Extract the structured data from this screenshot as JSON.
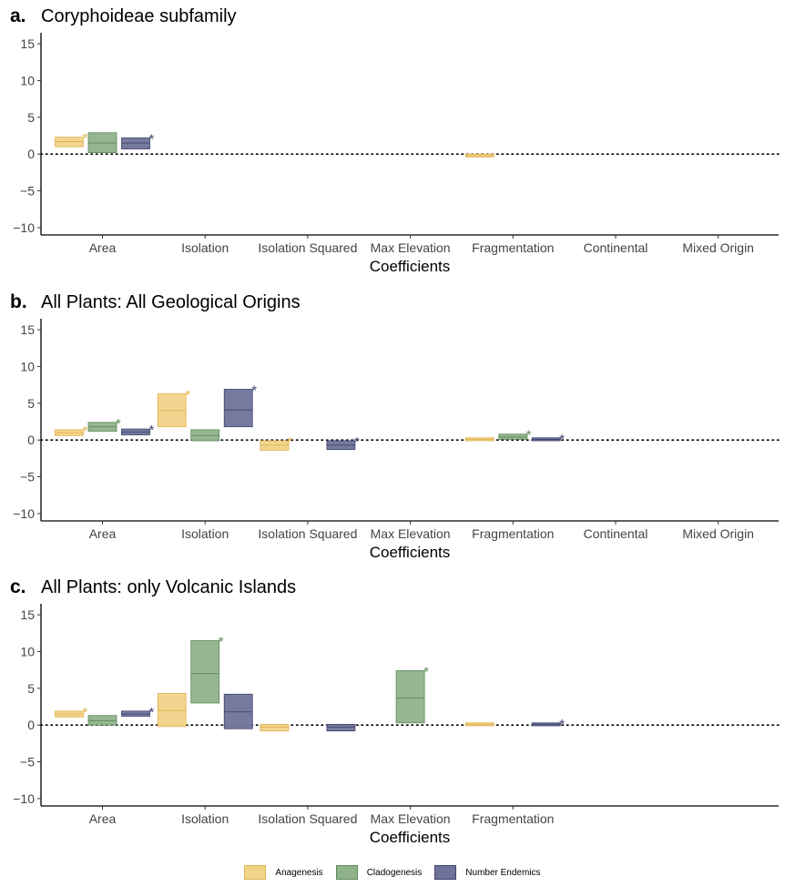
{
  "colors": {
    "anagenesis": "#f2d38a",
    "anagenesis_line": "#e0b44e",
    "cladogenesis": "#8fb28a",
    "cladogenesis_line": "#5b8a58",
    "endemics": "#6f7399",
    "endemics_line": "#3e4470"
  },
  "legend": {
    "anagenesis": "Anagenesis",
    "cladogenesis": "Cladogenesis",
    "endemics": "Number Endemics"
  },
  "chart_data": [
    {
      "type": "box",
      "panel_label": "a.",
      "title": "Coryphoideae subfamily",
      "xlabel": "Coefficients",
      "ylabel": "",
      "ylim": [
        -11,
        16
      ],
      "yticks": [
        -10,
        -5,
        0,
        5,
        10,
        15
      ],
      "categories": [
        "Area",
        "Isolation",
        "Isolation Squared",
        "Max Elevation",
        "Fragmentation",
        "Continental",
        "Mixed Origin"
      ],
      "series": [
        {
          "name": "Anagenesis",
          "key": "anagenesis",
          "offset": -1,
          "boxes": [
            {
              "cat": 0,
              "low": 1.0,
              "mid": 1.7,
              "high": 2.3,
              "star": true
            },
            {
              "cat": 4,
              "low": -0.4,
              "mid": -0.2,
              "high": 0.0,
              "star": false
            }
          ]
        },
        {
          "name": "Cladogenesis",
          "key": "cladogenesis",
          "offset": 0,
          "boxes": [
            {
              "cat": 0,
              "low": 0.2,
              "mid": 1.5,
              "high": 2.9,
              "star": false
            }
          ]
        },
        {
          "name": "Number Endemics",
          "key": "endemics",
          "offset": 1,
          "boxes": [
            {
              "cat": 0,
              "low": 0.7,
              "mid": 1.5,
              "high": 2.2,
              "star": true
            }
          ]
        }
      ]
    },
    {
      "type": "box",
      "panel_label": "b.",
      "title": "All Plants: All Geological Origins",
      "xlabel": "Coefficients",
      "ylabel": "",
      "ylim": [
        -11,
        16
      ],
      "yticks": [
        -10,
        -5,
        0,
        5,
        10,
        15
      ],
      "categories": [
        "Area",
        "Isolation",
        "Isolation Squared",
        "Max Elevation",
        "Fragmentation",
        "Continental",
        "Mixed Origin"
      ],
      "series": [
        {
          "name": "Anagenesis",
          "key": "anagenesis",
          "offset": -1,
          "boxes": [
            {
              "cat": 0,
              "low": 0.6,
              "mid": 1.0,
              "high": 1.4,
              "star": true
            },
            {
              "cat": 1,
              "low": 1.8,
              "mid": 4.0,
              "high": 6.3,
              "star": true
            },
            {
              "cat": 2,
              "low": -1.4,
              "mid": -0.7,
              "high": -0.1,
              "star": true
            },
            {
              "cat": 4,
              "low": -0.1,
              "mid": 0.1,
              "high": 0.3,
              "star": false
            }
          ]
        },
        {
          "name": "Cladogenesis",
          "key": "cladogenesis",
          "offset": 0,
          "boxes": [
            {
              "cat": 0,
              "low": 1.2,
              "mid": 1.8,
              "high": 2.4,
              "star": true
            },
            {
              "cat": 1,
              "low": -0.1,
              "mid": 0.6,
              "high": 1.4,
              "star": false
            },
            {
              "cat": 4,
              "low": 0.1,
              "mid": 0.4,
              "high": 0.8,
              "star": true
            }
          ]
        },
        {
          "name": "Number Endemics",
          "key": "endemics",
          "offset": 1,
          "boxes": [
            {
              "cat": 0,
              "low": 0.7,
              "mid": 1.1,
              "high": 1.5,
              "star": true
            },
            {
              "cat": 1,
              "low": 1.8,
              "mid": 4.1,
              "high": 6.9,
              "star": true
            },
            {
              "cat": 2,
              "low": -1.3,
              "mid": -0.7,
              "high": -0.1,
              "star": true
            },
            {
              "cat": 4,
              "low": -0.1,
              "mid": 0.1,
              "high": 0.3,
              "star": true
            }
          ]
        }
      ]
    },
    {
      "type": "box",
      "panel_label": "c.",
      "title": "All Plants: only Volcanic Islands",
      "xlabel": "Coefficients",
      "ylabel": "",
      "ylim": [
        -11,
        16
      ],
      "yticks": [
        -10,
        -5,
        0,
        5,
        10,
        15
      ],
      "categories": [
        "Area",
        "Isolation",
        "Isolation Squared",
        "Max Elevation",
        "Fragmentation"
      ],
      "series": [
        {
          "name": "Anagenesis",
          "key": "anagenesis",
          "offset": -1,
          "boxes": [
            {
              "cat": 0,
              "low": 1.1,
              "mid": 1.5,
              "high": 1.9,
              "star": true
            },
            {
              "cat": 1,
              "low": -0.2,
              "mid": 2.0,
              "high": 4.3,
              "star": false
            },
            {
              "cat": 2,
              "low": -0.8,
              "mid": -0.3,
              "high": 0.1,
              "star": false
            },
            {
              "cat": 4,
              "low": -0.1,
              "mid": 0.1,
              "high": 0.3,
              "star": false
            }
          ]
        },
        {
          "name": "Cladogenesis",
          "key": "cladogenesis",
          "offset": 0,
          "boxes": [
            {
              "cat": 0,
              "low": 0.0,
              "mid": 0.6,
              "high": 1.3,
              "star": false
            },
            {
              "cat": 1,
              "low": 3.0,
              "mid": 7.0,
              "high": 11.5,
              "star": true
            },
            {
              "cat": 3,
              "low": 0.3,
              "mid": 3.7,
              "high": 7.4,
              "star": true
            }
          ]
        },
        {
          "name": "Number Endemics",
          "key": "endemics",
          "offset": 1,
          "boxes": [
            {
              "cat": 0,
              "low": 1.2,
              "mid": 1.5,
              "high": 1.9,
              "star": true
            },
            {
              "cat": 1,
              "low": -0.5,
              "mid": 1.8,
              "high": 4.2,
              "star": false
            },
            {
              "cat": 2,
              "low": -0.8,
              "mid": -0.3,
              "high": 0.1,
              "star": false
            },
            {
              "cat": 4,
              "low": -0.1,
              "mid": 0.1,
              "high": 0.3,
              "star": true
            }
          ]
        }
      ]
    }
  ]
}
